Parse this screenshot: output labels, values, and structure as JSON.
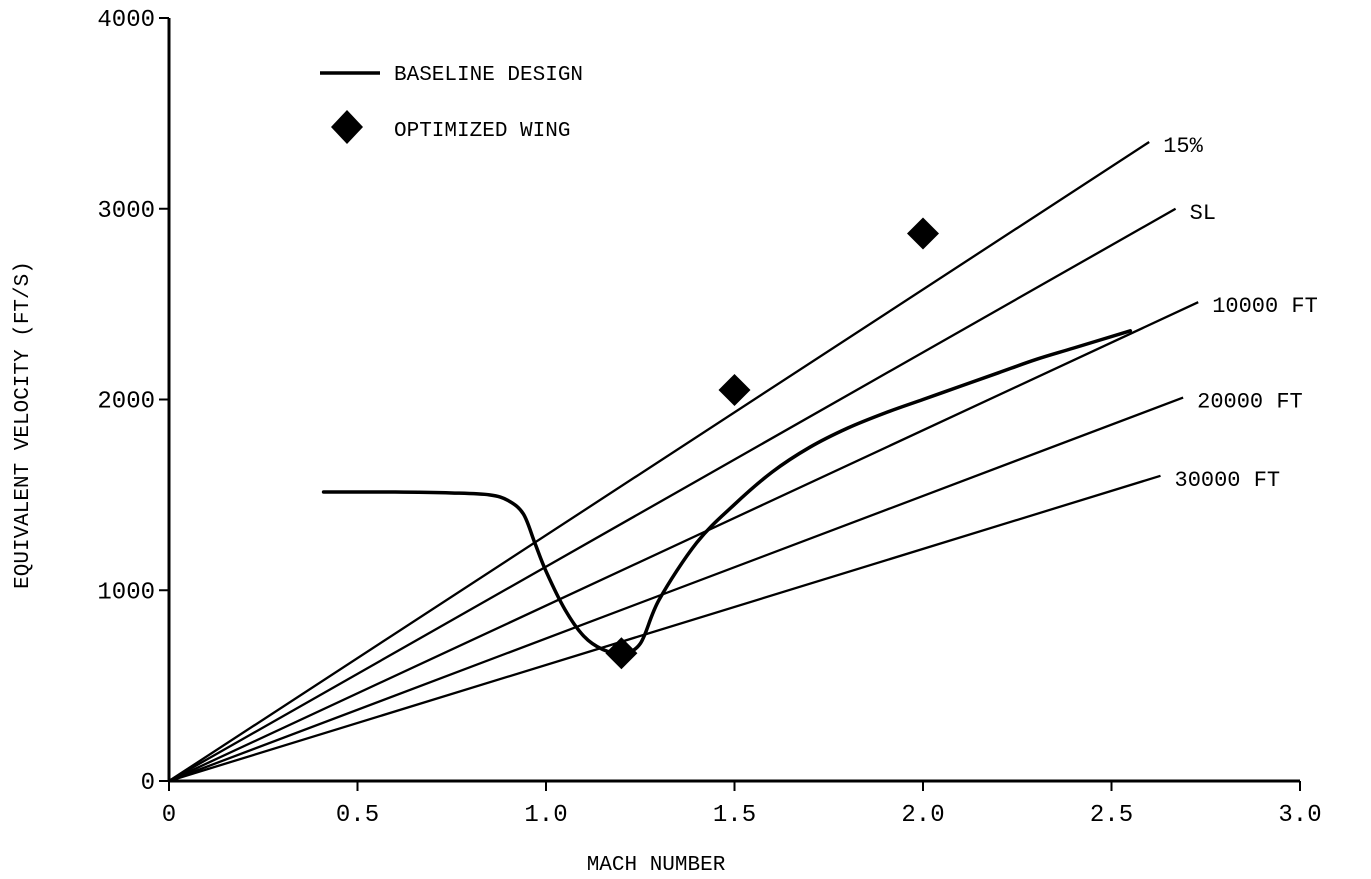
{
  "chart_data": {
    "type": "line",
    "title": "",
    "xlabel": "MACH NUMBER",
    "ylabel": "EQUIVALENT VELOCITY (FT/S)",
    "xlim": [
      0,
      3.0
    ],
    "ylim": [
      0,
      4000
    ],
    "x_ticks": [
      "0",
      "0.5",
      "1.0",
      "1.5",
      "2.0",
      "2.5",
      "3.0"
    ],
    "y_ticks": [
      "0",
      "1000",
      "2000",
      "3000",
      "4000"
    ],
    "grid": false,
    "legend_position": "top-left",
    "legend": {
      "baseline_label": "BASELINE DESIGN",
      "optimized_label": "OPTIMIZED WING"
    },
    "reference_lines": [
      {
        "label": "15%",
        "x": [
          0,
          2.6
        ],
        "y": [
          0,
          3350
        ]
      },
      {
        "label": "SL",
        "x": [
          0,
          2.67
        ],
        "y": [
          0,
          3000
        ]
      },
      {
        "label": "10000 FT",
        "x": [
          0,
          2.73
        ],
        "y": [
          0,
          2510
        ]
      },
      {
        "label": "20000 FT",
        "x": [
          0,
          2.69
        ],
        "y": [
          0,
          2010
        ]
      },
      {
        "label": "30000 FT",
        "x": [
          0,
          2.63
        ],
        "y": [
          0,
          1600
        ]
      }
    ],
    "series": [
      {
        "name": "BASELINE DESIGN",
        "type": "line",
        "x": [
          0.41,
          0.6,
          0.75,
          0.85,
          0.9,
          0.94,
          0.97,
          1.0,
          1.05,
          1.1,
          1.15,
          1.2,
          1.25,
          1.3,
          1.4,
          1.5,
          1.6,
          1.7,
          1.8,
          1.9,
          2.0,
          2.1,
          2.2,
          2.3,
          2.4,
          2.55
        ],
        "y": [
          1515,
          1515,
          1510,
          1500,
          1470,
          1400,
          1250,
          1100,
          900,
          760,
          690,
          670,
          720,
          950,
          1250,
          1450,
          1620,
          1750,
          1850,
          1930,
          2000,
          2070,
          2140,
          2210,
          2270,
          2360
        ]
      },
      {
        "name": "OPTIMIZED WING",
        "type": "scatter",
        "x": [
          1.2,
          1.5,
          2.0
        ],
        "y": [
          670,
          2050,
          2870
        ]
      }
    ]
  }
}
